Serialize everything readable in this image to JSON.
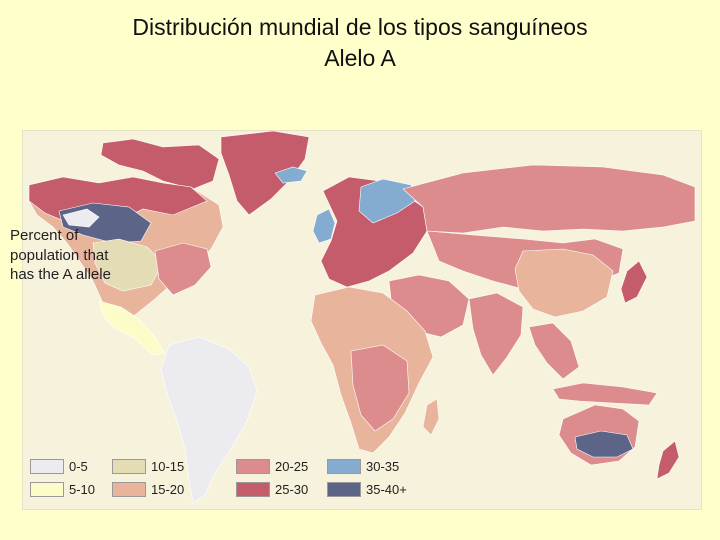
{
  "title": {
    "line1": "Distribución mundial de los tipos sanguíneos",
    "line2": "Alelo A"
  },
  "map": {
    "caption": "Percent of population that has the A allele",
    "colors": {
      "ocean": "#f6f2dc",
      "0-5": "#ececf0",
      "5-10": "#fcfcc8",
      "10-15": "#e4dcb4",
      "15-20": "#e8b49c",
      "20-25": "#dc8c8c",
      "25-30": "#c45c6c",
      "30-35": "#84acd0",
      "35-40+": "#5c6488"
    },
    "legend": [
      {
        "label": "0-5",
        "color": "#ececf0"
      },
      {
        "label": "5-10",
        "color": "#fcfcc8"
      },
      {
        "label": "10-15",
        "color": "#e4dcb4"
      },
      {
        "label": "15-20",
        "color": "#e8b49c"
      },
      {
        "label": "20-25",
        "color": "#dc8c8c"
      },
      {
        "label": "25-30",
        "color": "#c45c6c"
      },
      {
        "label": "30-35",
        "color": "#84acd0"
      },
      {
        "label": "35-40+",
        "color": "#5c6488"
      }
    ]
  }
}
